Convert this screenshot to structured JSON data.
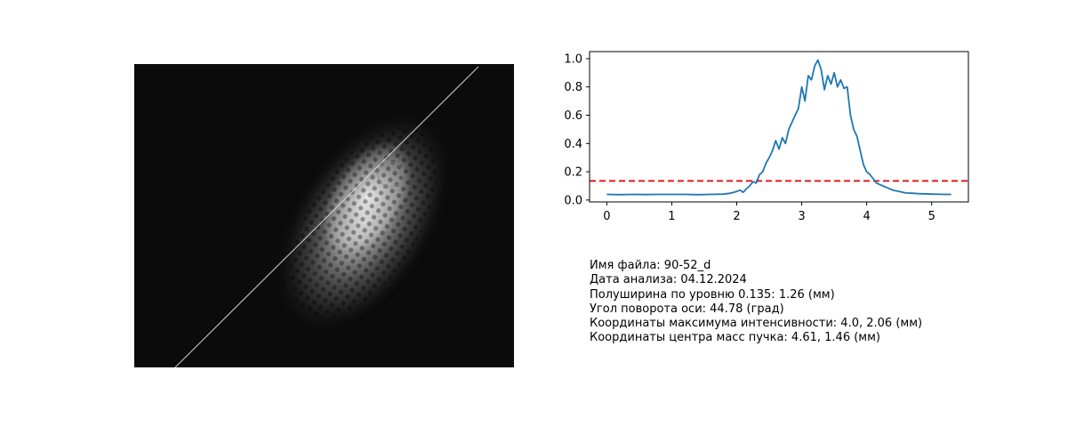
{
  "image_panel": {
    "description_icon": "beam-intensity-image",
    "cut_line": {
      "angle_deg": 44.78
    }
  },
  "info": {
    "file_name": "Имя файла: 90-52_d",
    "analysis_date": "Дата анализа: 04.12.2024",
    "half_width": "Полуширина по уровню 0.135: 1.26 (мм)",
    "rotation_angle": "Угол поворота оси: 44.78 (град)",
    "max_coords": "Координаты максимума интенсивности: 4.0, 2.06 (мм)",
    "center_mass": "Координаты центра масс пучка: 4.61, 1.46 (мм)"
  },
  "colors": {
    "profile_line": "#1f77b4",
    "threshold_line": "#e31a1c",
    "image_background": "#0b0b0b"
  },
  "chart_data": {
    "type": "line",
    "title": "",
    "xlabel": "",
    "ylabel": "",
    "xlim": [
      -0.265,
      5.565
    ],
    "ylim": [
      -0.0135,
      1.05
    ],
    "xticks": [
      0,
      1,
      2,
      3,
      4,
      5
    ],
    "yticks": [
      0.0,
      0.2,
      0.4,
      0.6,
      0.8,
      1.0
    ],
    "xtick_labels": [
      "0",
      "1",
      "2",
      "3",
      "4",
      "5"
    ],
    "ytick_labels": [
      "0.0",
      "0.2",
      "0.4",
      "0.6",
      "0.8",
      "1.0"
    ],
    "threshold": 0.135,
    "grid": false,
    "series": [
      {
        "x": [
          0.0,
          0.2,
          0.4,
          0.6,
          0.8,
          1.0,
          1.2,
          1.4,
          1.6,
          1.8,
          1.9,
          2.0,
          2.05,
          2.1,
          2.15,
          2.2,
          2.25,
          2.3,
          2.35,
          2.4,
          2.45,
          2.5,
          2.55,
          2.6,
          2.65,
          2.7,
          2.75,
          2.8,
          2.85,
          2.9,
          2.95,
          3.0,
          3.05,
          3.1,
          3.15,
          3.2,
          3.25,
          3.3,
          3.35,
          3.4,
          3.45,
          3.5,
          3.55,
          3.6,
          3.65,
          3.7,
          3.75,
          3.8,
          3.85,
          3.9,
          3.95,
          4.0,
          4.05,
          4.1,
          4.15,
          4.2,
          4.25,
          4.3,
          4.4,
          4.5,
          4.6,
          4.7,
          4.8,
          5.0,
          5.2,
          5.3
        ],
        "y": [
          0.04,
          0.038,
          0.04,
          0.039,
          0.04,
          0.04,
          0.04,
          0.038,
          0.04,
          0.042,
          0.048,
          0.06,
          0.07,
          0.055,
          0.08,
          0.1,
          0.13,
          0.12,
          0.18,
          0.2,
          0.26,
          0.3,
          0.35,
          0.42,
          0.36,
          0.44,
          0.4,
          0.5,
          0.55,
          0.6,
          0.65,
          0.8,
          0.7,
          0.88,
          0.85,
          0.95,
          0.99,
          0.92,
          0.78,
          0.88,
          0.82,
          0.9,
          0.8,
          0.85,
          0.79,
          0.8,
          0.6,
          0.5,
          0.45,
          0.35,
          0.25,
          0.2,
          0.18,
          0.15,
          0.12,
          0.11,
          0.1,
          0.09,
          0.07,
          0.06,
          0.05,
          0.048,
          0.045,
          0.042,
          0.04,
          0.04
        ]
      }
    ]
  }
}
